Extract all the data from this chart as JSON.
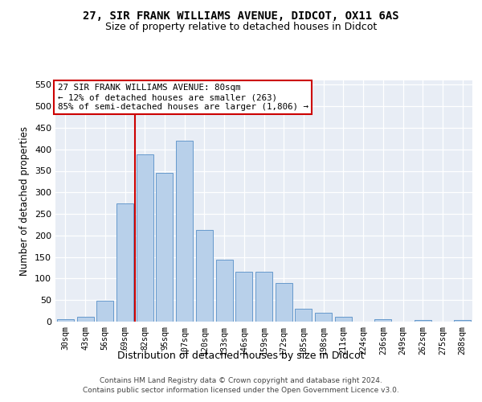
{
  "title_line1": "27, SIR FRANK WILLIAMS AVENUE, DIDCOT, OX11 6AS",
  "title_line2": "Size of property relative to detached houses in Didcot",
  "xlabel": "Distribution of detached houses by size in Didcot",
  "ylabel": "Number of detached properties",
  "categories": [
    "30sqm",
    "43sqm",
    "56sqm",
    "69sqm",
    "82sqm",
    "95sqm",
    "107sqm",
    "120sqm",
    "133sqm",
    "146sqm",
    "159sqm",
    "172sqm",
    "185sqm",
    "198sqm",
    "211sqm",
    "224sqm",
    "236sqm",
    "249sqm",
    "262sqm",
    "275sqm",
    "288sqm"
  ],
  "values": [
    5,
    11,
    48,
    275,
    388,
    345,
    420,
    212,
    144,
    115,
    116,
    90,
    30,
    20,
    11,
    0,
    5,
    0,
    3,
    0,
    3
  ],
  "bar_color": "#b8d0ea",
  "bar_edge_color": "#6699cc",
  "vline_color": "#cc0000",
  "vline_idx": 4,
  "annotation_text": "27 SIR FRANK WILLIAMS AVENUE: 80sqm\n← 12% of detached houses are smaller (263)\n85% of semi-detached houses are larger (1,806) →",
  "annotation_box_facecolor": "white",
  "annotation_box_edgecolor": "#cc0000",
  "ylim_max": 560,
  "yticks": [
    0,
    50,
    100,
    150,
    200,
    250,
    300,
    350,
    400,
    450,
    500,
    550
  ],
  "bg_color": "#e8edf5",
  "footer_line1": "Contains HM Land Registry data © Crown copyright and database right 2024.",
  "footer_line2": "Contains public sector information licensed under the Open Government Licence v3.0."
}
